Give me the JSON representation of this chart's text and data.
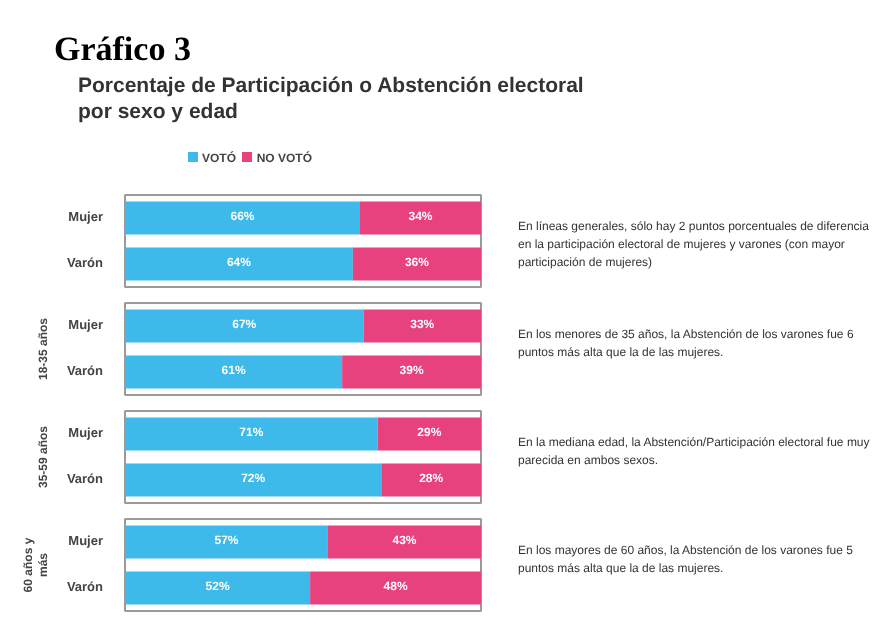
{
  "chart_data": [
    {
      "type": "bar",
      "orientation": "horizontal",
      "stacked": true,
      "title": "Gráfico 3",
      "subtitle": "Porcentaje de Participación o Abstención electoral por sexo y edad",
      "legend": "top",
      "tick_labels": "y",
      "categories": [
        "Mujer",
        "Varón"
      ],
      "series": [
        {
          "name": "VOTÓ",
          "color": "#3db9ea",
          "values": [
            66,
            64
          ],
          "value_labels": [
            "66%",
            "64%"
          ]
        },
        {
          "name": "NO VOTÓ",
          "color": "#e8427e",
          "values": [
            34,
            36
          ],
          "value_labels": [
            "34%",
            "36%"
          ]
        }
      ],
      "annotations": [
        "En líneas generales, sólo hay 2 puntos porcentuales de diferencia en la participación electoral de mujeres y varones (con mayor participación de mujeres)"
      ]
    },
    {
      "type": "bar",
      "orientation": "horizontal",
      "stacked": true,
      "ylabel": "18-35 años",
      "tick_labels": "y",
      "categories": [
        "Mujer",
        "Varón"
      ],
      "series": [
        {
          "color": "#3db9ea",
          "values": [
            67,
            61
          ],
          "value_labels": [
            "67%",
            "61%"
          ]
        },
        {
          "color": "#e8427e",
          "values": [
            33,
            39
          ],
          "value_labels": [
            "33%",
            "39%"
          ]
        }
      ],
      "annotations": [
        "En los menores de 35 años, la Abstención de los varones fue 6 puntos más alta que la de las mujeres."
      ]
    },
    {
      "type": "bar",
      "orientation": "horizontal",
      "stacked": true,
      "ylabel": "35-59 años",
      "tick_labels": "y",
      "categories": [
        "Mujer",
        "Varón"
      ],
      "series": [
        {
          "color": "#3db9ea",
          "values": [
            71,
            72
          ],
          "value_labels": [
            "71%",
            "72%"
          ]
        },
        {
          "color": "#e8427e",
          "values": [
            29,
            28
          ],
          "value_labels": [
            "29%",
            "28%"
          ]
        }
      ],
      "annotations": [
        "En la mediana edad, la Abstención/Participación electoral fue muy parecida en ambos sexos."
      ]
    },
    {
      "type": "bar",
      "orientation": "horizontal",
      "stacked": true,
      "ylabel": "60 años y más",
      "tick_labels": "y",
      "categories": [
        "Mujer",
        "Varón"
      ],
      "series": [
        {
          "color": "#3db9ea",
          "values": [
            57,
            52
          ],
          "value_labels": [
            "57%",
            "52%"
          ]
        },
        {
          "color": "#e8427e",
          "values": [
            43,
            48
          ],
          "value_labels": [
            "43%",
            "48%"
          ]
        }
      ],
      "annotations": [
        "En los mayores de 60 años, la Abstención de los varones fue 5 puntos más alta que la de las mujeres."
      ]
    }
  ]
}
